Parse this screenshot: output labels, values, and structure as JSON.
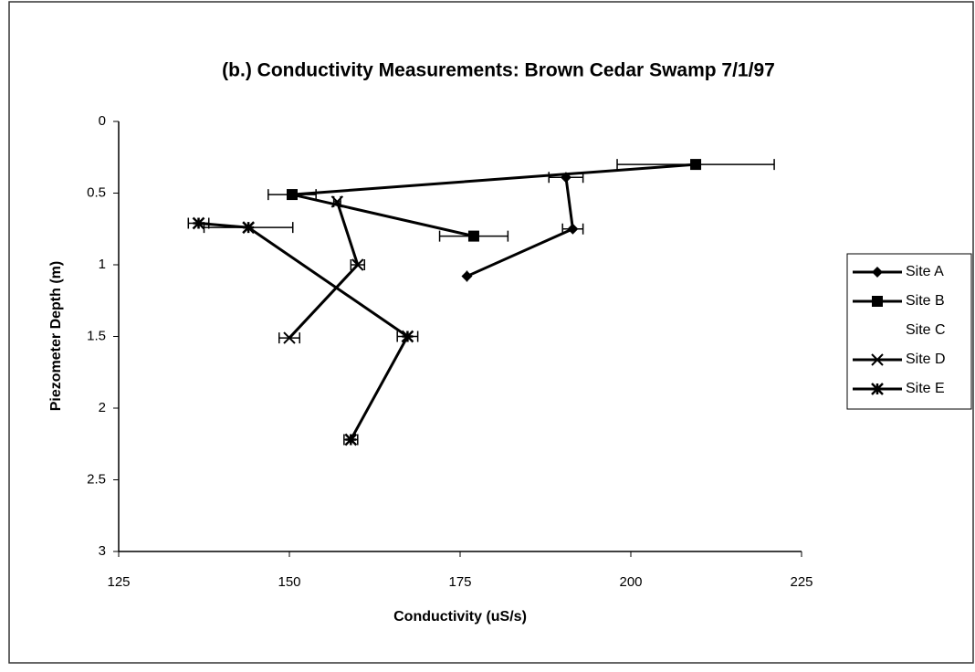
{
  "chart_data": {
    "type": "line",
    "title": "(b.) Conductivity Measurements: Brown Cedar Swamp 7/1/97",
    "xlabel": "Conductivity (uS/s)",
    "ylabel": "Piezometer Depth (m)",
    "xlim": [
      125,
      225
    ],
    "xticks": [
      125,
      150,
      175,
      200,
      225
    ],
    "ylim": [
      0,
      3
    ],
    "yticks": [
      0,
      0.5,
      1,
      1.5,
      2,
      2.5,
      3
    ],
    "y_inverted": true,
    "grid": false,
    "legend": "right",
    "series": [
      {
        "name": "Site A",
        "color": "#000000",
        "marker": "diamond",
        "x": [
          190.5,
          191.5,
          176
        ],
        "values": [
          0.39,
          0.75,
          1.08
        ],
        "xerr": [
          2.5,
          1.5,
          0
        ]
      },
      {
        "name": "Site B",
        "color": "#000000",
        "marker": "square",
        "x": [
          209.5,
          150.4,
          177
        ],
        "values": [
          0.3,
          0.51,
          0.8
        ],
        "xerr": [
          11.5,
          3.5,
          5
        ]
      },
      {
        "name": "Site C",
        "color": "#000000",
        "marker": "none",
        "x": [],
        "values": [],
        "xerr": []
      },
      {
        "name": "Site D",
        "color": "#000000",
        "marker": "x",
        "x": [
          157,
          160,
          150
        ],
        "values": [
          0.56,
          1.0,
          1.51
        ],
        "xerr": [
          0.5,
          1,
          1.5
        ]
      },
      {
        "name": "Site E",
        "color": "#000000",
        "marker": "star",
        "x": [
          136.7,
          144,
          167.3,
          159
        ],
        "values": [
          0.71,
          0.74,
          1.5,
          2.22
        ],
        "xerr": [
          1.5,
          6.5,
          1.5,
          1
        ]
      }
    ]
  }
}
